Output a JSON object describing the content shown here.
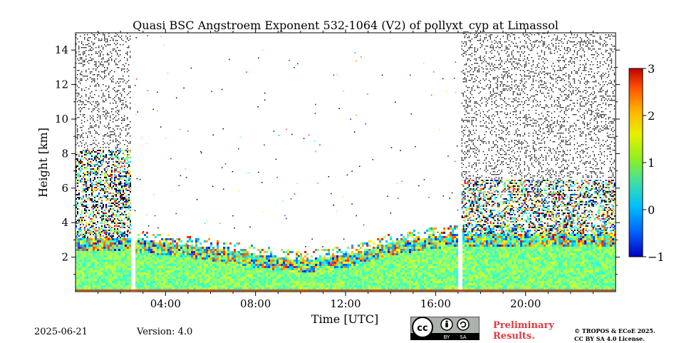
{
  "chart_data": {
    "type": "heatmap",
    "title": "Quasi BSC Angstroem Exponent 532-1064 (V2) of pollyxt_cyp at Limassol",
    "xlabel": "Time [UTC]",
    "ylabel": "Height [km]",
    "xlim_hours": [
      0,
      24
    ],
    "ylim_km": [
      0,
      15
    ],
    "x_ticks": [
      {
        "hour": 4,
        "label": "04:00"
      },
      {
        "hour": 8,
        "label": "08:00"
      },
      {
        "hour": 12,
        "label": "12:00"
      },
      {
        "hour": 16,
        "label": "16:00"
      },
      {
        "hour": 20,
        "label": "20:00"
      }
    ],
    "y_ticks": [
      {
        "km": 2,
        "label": "2"
      },
      {
        "km": 4,
        "label": "4"
      },
      {
        "km": 6,
        "label": "6"
      },
      {
        "km": 8,
        "label": "8"
      },
      {
        "km": 10,
        "label": "10"
      },
      {
        "km": 12,
        "label": "12"
      },
      {
        "km": 14,
        "label": "14"
      }
    ],
    "colorbar": {
      "colormap": "jet",
      "range": [
        -1,
        3
      ],
      "ticks": [
        {
          "value": 3,
          "label": "3"
        },
        {
          "value": 2,
          "label": "2"
        },
        {
          "value": 1,
          "label": "1"
        },
        {
          "value": 0,
          "label": "0"
        },
        {
          "value": -1,
          "label": "−1"
        }
      ]
    },
    "data_gaps_hours": [
      [
        2.45,
        2.6
      ],
      [
        17.0,
        17.15
      ]
    ],
    "layer_top_km": [
      [
        0,
        3.2
      ],
      [
        2.5,
        3.1
      ],
      [
        4,
        2.9
      ],
      [
        6,
        2.6
      ],
      [
        8,
        2.2
      ],
      [
        10,
        1.9
      ],
      [
        12,
        2.2
      ],
      [
        14,
        2.9
      ],
      [
        16,
        3.3
      ],
      [
        17,
        3.4
      ],
      [
        20,
        3.4
      ],
      [
        24,
        3.4
      ]
    ],
    "night_signal_top_km": [
      [
        0,
        15
      ],
      [
        2.45,
        15
      ],
      [
        17.15,
        15
      ],
      [
        24,
        15
      ]
    ],
    "dense_noise_top_km": {
      "night_early": 8.3,
      "night_late": 6.5
    },
    "typical_value_in_layer": 1.0,
    "colors": {
      "layer_green": "#8fe80c",
      "noise_dot": "#000000",
      "near_surface_line": "#e04010"
    }
  },
  "footer": {
    "date": "2025-06-21",
    "version": "Version: 4.0",
    "preliminary_line1": "Preliminary",
    "preliminary_line2": "Results.",
    "copyright_line1": "© TROPOS & ECoE 2025.",
    "copyright_line2": "CC BY SA 4.0 License.",
    "cc_badge": {
      "cc": "cc",
      "by": "BY",
      "sa": "SA"
    }
  }
}
